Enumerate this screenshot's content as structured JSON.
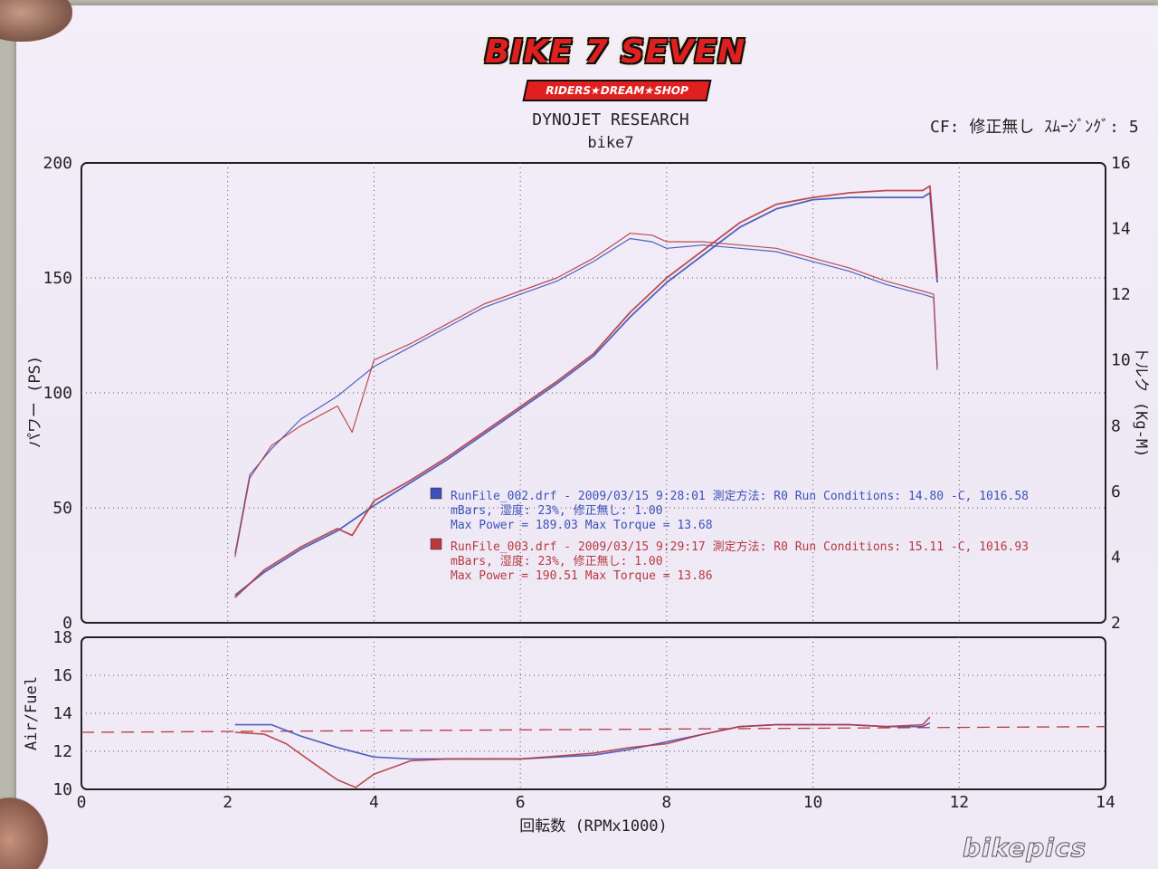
{
  "logo": {
    "text": "BIKE 7 SEVEN",
    "sub": "RIDERS★DREAM★SHOP"
  },
  "header": {
    "title": "DYNOJET  RESEARCH",
    "subtitle": "bike7",
    "cf": "CF: 修正無し  ｽﾑｰｼﾞﾝｸﾞ: 5"
  },
  "watermark": "bikepics",
  "colors": {
    "run1": "#3c52b8",
    "run2": "#b73a3e",
    "grid": "#555",
    "axis": "#222"
  },
  "legend": [
    {
      "line1": "RunFile_002.drf - 2009/03/15 9:28:01  測定方法: R0  Run Conditions: 14.80 -C, 1016.58",
      "line2": "mBars,  湿度: 23%, 修正無し: 1.00",
      "line3": "Max Power = 189.03  Max Torque = 13.68"
    },
    {
      "line1": "RunFile_003.drf - 2009/03/15 9:29:17  測定方法: R0  Run Conditions: 15.11 -C, 1016.93",
      "line2": "mBars,  湿度: 23%, 修正無し: 1.00",
      "line3": "Max Power = 190.51  Max Torque = 13.86"
    }
  ],
  "chart_data": [
    {
      "type": "line",
      "ylabel": "パワー (PS)",
      "y2label": "トルク (Kg-M)",
      "xlabel": "回転数 (RPMx1000)",
      "xlim": [
        0,
        14
      ],
      "ylim": [
        0,
        200
      ],
      "y2lim": [
        2,
        16
      ],
      "xticks": [
        "0",
        "2",
        "4",
        "6",
        "8",
        "10",
        "12",
        "14"
      ],
      "yticks": [
        "0",
        "50",
        "100",
        "150",
        "200"
      ],
      "y2ticks": [
        "2",
        "4",
        "6",
        "8",
        "10",
        "12",
        "14",
        "16"
      ],
      "grid": true,
      "power": [
        {
          "name": "RunFile_002",
          "points": [
            [
              2.1,
              12
            ],
            [
              2.5,
              22
            ],
            [
              3.0,
              32
            ],
            [
              3.5,
              40
            ],
            [
              4.0,
              51
            ],
            [
              4.5,
              61
            ],
            [
              5.0,
              71
            ],
            [
              5.5,
              82
            ],
            [
              6.0,
              93
            ],
            [
              6.5,
              104
            ],
            [
              7.0,
              116
            ],
            [
              7.5,
              133
            ],
            [
              8.0,
              148
            ],
            [
              8.5,
              160
            ],
            [
              9.0,
              172
            ],
            [
              9.5,
              180
            ],
            [
              10.0,
              184
            ],
            [
              10.5,
              185
            ],
            [
              11.0,
              185
            ],
            [
              11.5,
              185
            ],
            [
              11.6,
              187
            ],
            [
              11.7,
              148
            ]
          ]
        },
        {
          "name": "RunFile_003",
          "points": [
            [
              2.1,
              11
            ],
            [
              2.5,
              23
            ],
            [
              3.0,
              33
            ],
            [
              3.5,
              41
            ],
            [
              3.7,
              38
            ],
            [
              4.0,
              53
            ],
            [
              4.5,
              62
            ],
            [
              5.0,
              72
            ],
            [
              5.5,
              83
            ],
            [
              6.0,
              94
            ],
            [
              6.5,
              105
            ],
            [
              7.0,
              117
            ],
            [
              7.5,
              135
            ],
            [
              8.0,
              150
            ],
            [
              8.5,
              162
            ],
            [
              9.0,
              174
            ],
            [
              9.5,
              182
            ],
            [
              10.0,
              185
            ],
            [
              10.5,
              187
            ],
            [
              11.0,
              188
            ],
            [
              11.5,
              188
            ],
            [
              11.6,
              190
            ],
            [
              11.7,
              150
            ]
          ]
        }
      ],
      "torque": [
        {
          "name": "RunFile_002",
          "points": [
            [
              2.1,
              4.1
            ],
            [
              2.3,
              6.5
            ],
            [
              2.6,
              7.3
            ],
            [
              3.0,
              8.2
            ],
            [
              3.5,
              8.9
            ],
            [
              4.0,
              9.8
            ],
            [
              4.5,
              10.4
            ],
            [
              5.0,
              11.0
            ],
            [
              5.5,
              11.6
            ],
            [
              6.0,
              12.0
            ],
            [
              6.5,
              12.4
            ],
            [
              7.0,
              13.0
            ],
            [
              7.5,
              13.7
            ],
            [
              7.8,
              13.6
            ],
            [
              8.0,
              13.4
            ],
            [
              8.5,
              13.5
            ],
            [
              9.0,
              13.4
            ],
            [
              9.5,
              13.3
            ],
            [
              10.0,
              13.0
            ],
            [
              10.5,
              12.7
            ],
            [
              11.0,
              12.3
            ],
            [
              11.5,
              12.0
            ],
            [
              11.65,
              11.9
            ],
            [
              11.7,
              9.7
            ]
          ]
        },
        {
          "name": "RunFile_003",
          "points": [
            [
              2.1,
              4.0
            ],
            [
              2.3,
              6.4
            ],
            [
              2.6,
              7.4
            ],
            [
              3.0,
              8.0
            ],
            [
              3.5,
              8.6
            ],
            [
              3.7,
              7.8
            ],
            [
              4.0,
              10.0
            ],
            [
              4.5,
              10.5
            ],
            [
              5.0,
              11.1
            ],
            [
              5.5,
              11.7
            ],
            [
              6.0,
              12.1
            ],
            [
              6.5,
              12.5
            ],
            [
              7.0,
              13.1
            ],
            [
              7.5,
              13.86
            ],
            [
              7.8,
              13.8
            ],
            [
              8.0,
              13.6
            ],
            [
              8.5,
              13.6
            ],
            [
              9.0,
              13.5
            ],
            [
              9.5,
              13.4
            ],
            [
              10.0,
              13.1
            ],
            [
              10.5,
              12.8
            ],
            [
              11.0,
              12.4
            ],
            [
              11.5,
              12.1
            ],
            [
              11.65,
              12.0
            ],
            [
              11.7,
              9.8
            ]
          ]
        }
      ]
    },
    {
      "type": "line",
      "ylabel": "Air/Fuel",
      "xlim": [
        0,
        14
      ],
      "ylim": [
        10,
        18
      ],
      "xticks": [
        "0",
        "2",
        "4",
        "6",
        "8",
        "10",
        "12",
        "14"
      ],
      "yticks": [
        "10",
        "12",
        "14",
        "16",
        "18"
      ],
      "reference": {
        "from": [
          0,
          13.0
        ],
        "to": [
          14,
          13.3
        ]
      },
      "grid": true,
      "series": [
        {
          "name": "RunFile_002",
          "points": [
            [
              2.1,
              13.4
            ],
            [
              2.6,
              13.4
            ],
            [
              3.0,
              12.8
            ],
            [
              3.5,
              12.2
            ],
            [
              4.0,
              11.7
            ],
            [
              4.5,
              11.6
            ],
            [
              5.0,
              11.6
            ],
            [
              6.0,
              11.6
            ],
            [
              7.0,
              11.8
            ],
            [
              7.5,
              12.1
            ],
            [
              8.0,
              12.5
            ],
            [
              8.5,
              12.9
            ],
            [
              9.0,
              13.3
            ],
            [
              9.5,
              13.4
            ],
            [
              10.0,
              13.4
            ],
            [
              10.5,
              13.4
            ],
            [
              11.0,
              13.3
            ],
            [
              11.5,
              13.3
            ],
            [
              11.6,
              13.5
            ]
          ]
        },
        {
          "name": "RunFile_003",
          "points": [
            [
              2.1,
              13.0
            ],
            [
              2.5,
              12.9
            ],
            [
              2.8,
              12.4
            ],
            [
              3.2,
              11.3
            ],
            [
              3.5,
              10.5
            ],
            [
              3.75,
              10.1
            ],
            [
              4.0,
              10.8
            ],
            [
              4.5,
              11.5
            ],
            [
              5.0,
              11.6
            ],
            [
              6.0,
              11.6
            ],
            [
              7.0,
              11.9
            ],
            [
              7.5,
              12.2
            ],
            [
              8.0,
              12.4
            ],
            [
              8.5,
              12.9
            ],
            [
              9.0,
              13.3
            ],
            [
              9.5,
              13.4
            ],
            [
              10.0,
              13.4
            ],
            [
              10.5,
              13.4
            ],
            [
              11.0,
              13.3
            ],
            [
              11.5,
              13.4
            ],
            [
              11.6,
              13.8
            ]
          ]
        }
      ]
    }
  ]
}
